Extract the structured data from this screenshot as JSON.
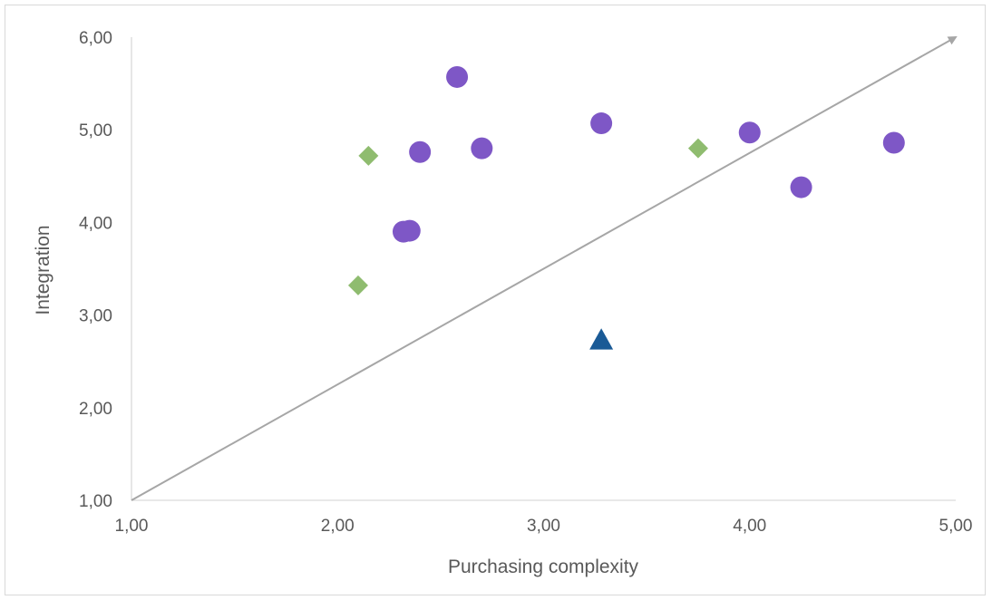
{
  "chart_data": {
    "type": "scatter",
    "xlabel": "Purchasing complexity",
    "ylabel": "Integration",
    "xlim": [
      1,
      5
    ],
    "ylim": [
      1,
      6
    ],
    "x_ticks": [
      "1,00",
      "2,00",
      "3,00",
      "4,00",
      "5,00"
    ],
    "y_ticks": [
      "1,00",
      "2,00",
      "3,00",
      "4,00",
      "5,00",
      "6,00"
    ],
    "grid": false,
    "series": [
      {
        "marker": "circle",
        "color": "#7e57c6",
        "points": [
          {
            "x": 2.32,
            "y": 3.9
          },
          {
            "x": 2.35,
            "y": 3.91
          },
          {
            "x": 2.4,
            "y": 4.76
          },
          {
            "x": 2.58,
            "y": 5.57
          },
          {
            "x": 2.7,
            "y": 4.8
          },
          {
            "x": 3.28,
            "y": 5.07
          },
          {
            "x": 4.0,
            "y": 4.97
          },
          {
            "x": 4.25,
            "y": 4.38
          },
          {
            "x": 4.7,
            "y": 4.86
          }
        ]
      },
      {
        "marker": "diamond",
        "color": "#8fbc6f",
        "points": [
          {
            "x": 2.1,
            "y": 3.32
          },
          {
            "x": 2.15,
            "y": 4.72
          },
          {
            "x": 3.75,
            "y": 4.8
          }
        ]
      },
      {
        "marker": "triangle",
        "color": "#1a5a96",
        "points": [
          {
            "x": 3.28,
            "y": 2.73
          }
        ]
      }
    ],
    "trend_arrow": {
      "from": [
        1,
        1
      ],
      "to": [
        5,
        6
      ],
      "color": "#a6a6a6"
    },
    "axis_color": "#d9d9d9"
  }
}
